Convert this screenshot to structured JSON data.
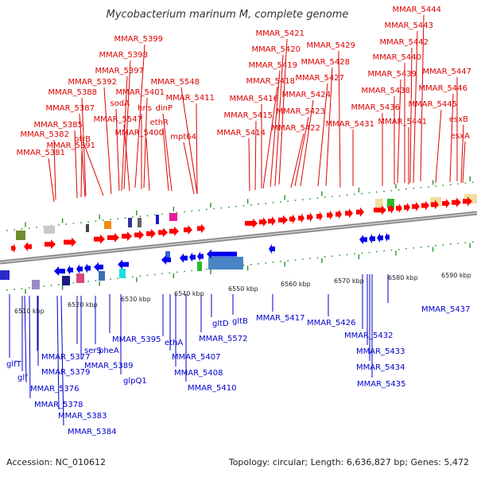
{
  "title": "Mycobacterium marinum M, complete genome",
  "footer": {
    "accession": "Accession: NC_010612",
    "summary": "Topology: circular; Length: 6,636,827 bp; Genes: 5,472"
  },
  "colors": {
    "forward_label": "#dd0000",
    "reverse_label": "#0000cc",
    "forward_gene": "#ff0000",
    "reverse_gene": "#0000ee",
    "backbone": "#888888",
    "tick": "#339933"
  },
  "scale": {
    "ticks": [
      "6510 kbp",
      "6520 kbp",
      "6530 kbp",
      "6540 kbp",
      "6550 kbp",
      "6560 kbp",
      "6570 kbp",
      "6580 kbp",
      "6590 kbp"
    ]
  },
  "forward_labels": [
    "MMAR_5399",
    "MMAR_5398",
    "MMAR_5397",
    "MMAR_5392",
    "MMAR_5401",
    "MMAR_5548",
    "MMAR_5388",
    "sodA",
    "hns",
    "MMAR_5411",
    "MMAR_5387",
    "MMAR_5547",
    "dinP",
    "MMAR_5385",
    "ethR",
    "bfrB",
    "MMAR_5400",
    "MMAR_5382",
    "MMAR_5391",
    "mpt64",
    "MMAR_5381",
    "MMAR_5421",
    "MMAR_5420",
    "MMAR_5419",
    "MMAR_5418",
    "MMAR_5416",
    "MMAR_5415",
    "MMAR_5414",
    "MMAR_5424",
    "MMAR_5423",
    "MMAR_5422",
    "MMAR_5429",
    "MMAR_5428",
    "MMAR_5427",
    "MMAR_5431",
    "MMAR_5444",
    "MMAR_5443",
    "MMAR_5442",
    "MMAR_5440",
    "MMAR_5439",
    "MMAR_5438",
    "MMAR_5436",
    "MMAR_5441",
    "MMAR_5447",
    "MMAR_5446",
    "MMAR_5445",
    "esxB",
    "esxA"
  ],
  "reverse_labels": [
    "glfT",
    "glf",
    "MMAR_5377",
    "MMAR_5379",
    "MMAR_5376",
    "MMAR_5378",
    "MMAR_5383",
    "MMAR_5384",
    "serS",
    "pheA",
    "MMAR_5389",
    "MMAR_5395",
    "glpQ1",
    "ethA",
    "MMAR_5407",
    "MMAR_5408",
    "MMAR_5410",
    "MMAR_5572",
    "gltD",
    "gltB",
    "MMAR_5417",
    "MMAR_5426",
    "MMAR_5432",
    "MMAR_5433",
    "MMAR_5434",
    "MMAR_5435",
    "MMAR_5437"
  ]
}
